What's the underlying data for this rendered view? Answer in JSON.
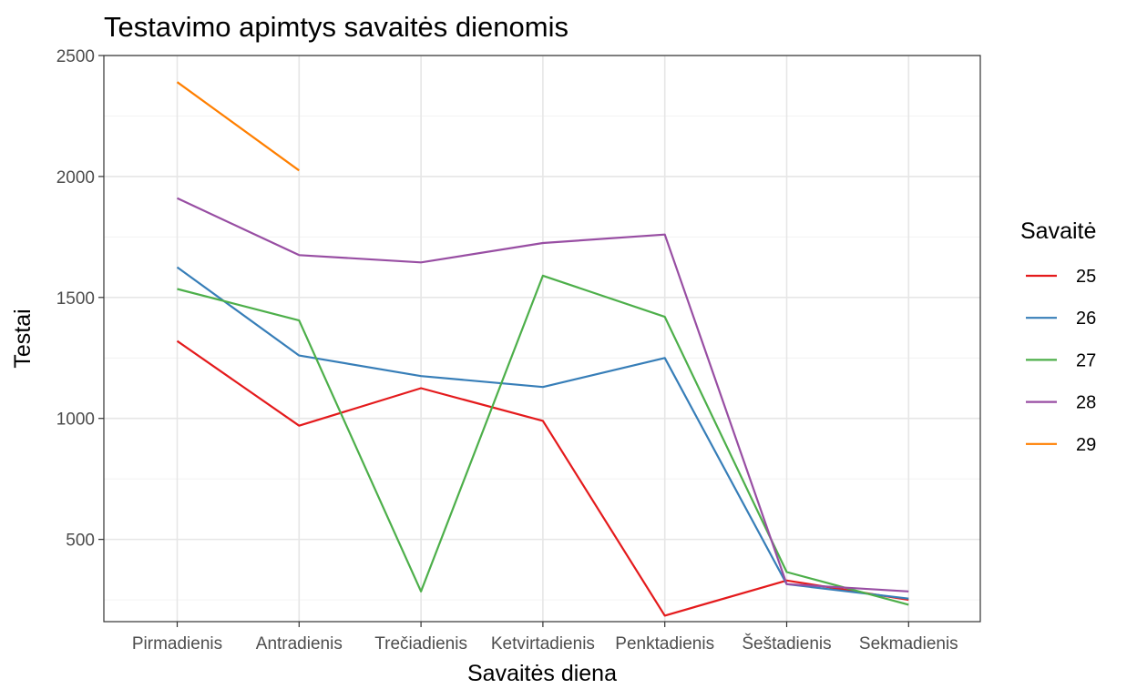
{
  "chart_data": {
    "type": "line",
    "title": "Testavimo apimtys savaitės dienomis",
    "xlabel": "Savaitės diena",
    "ylabel": "Testai",
    "categories": [
      "Pirmadienis",
      "Antradienis",
      "Trečiadienis",
      "Ketvirtadienis",
      "Penktadienis",
      "Šeštadienis",
      "Sekmadienis"
    ],
    "ylim": [
      160,
      2500
    ],
    "yticks": [
      500,
      1000,
      1500,
      2000,
      2500
    ],
    "grid": true,
    "legend": {
      "title": "Savaitė",
      "position": "right"
    },
    "series": [
      {
        "name": "25",
        "color": "#e41a1c",
        "values": [
          1320,
          970,
          1125,
          990,
          185,
          330,
          250
        ]
      },
      {
        "name": "26",
        "color": "#377eb8",
        "values": [
          1625,
          1260,
          1175,
          1130,
          1250,
          315,
          255
        ]
      },
      {
        "name": "27",
        "color": "#4daf4a",
        "values": [
          1535,
          1405,
          285,
          1590,
          1420,
          365,
          230
        ]
      },
      {
        "name": "28",
        "color": "#984ea3",
        "values": [
          1910,
          1675,
          1645,
          1725,
          1760,
          315,
          285
        ]
      },
      {
        "name": "29",
        "color": "#ff7f00",
        "values": [
          2390,
          2025,
          null,
          null,
          null,
          null,
          null
        ]
      }
    ]
  }
}
